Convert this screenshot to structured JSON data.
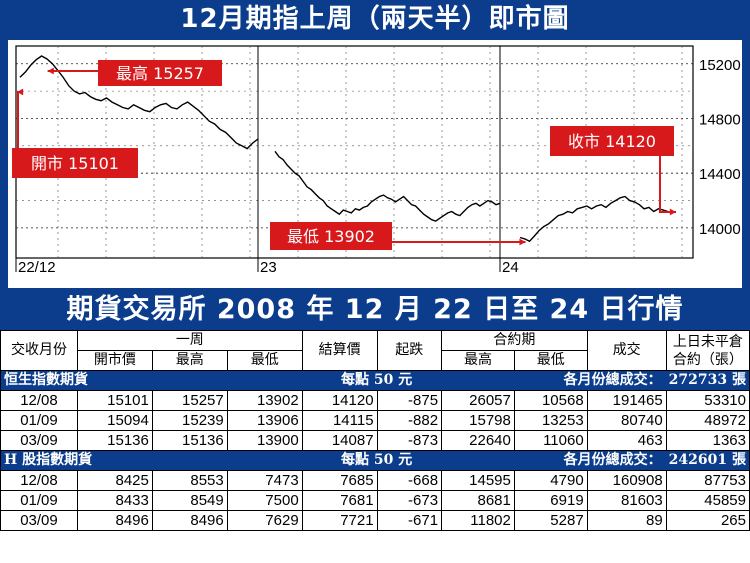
{
  "top_title": "12月期指上周（兩天半）即市圖",
  "table_title": "期貨交易所 2008 年 12 月 22 日至 24 日行情",
  "chart_data": {
    "type": "line",
    "title": "12月期指上周（兩天半）即市圖",
    "x_labels": [
      "22/12",
      "23",
      "24"
    ],
    "y_ticks": [
      15200,
      14800,
      14400,
      14000
    ],
    "ylim": [
      13780,
      15330
    ],
    "grid": true,
    "line_color": "#000000",
    "sessions": [
      {
        "day": "22/12",
        "values": [
          15101,
          15140,
          15190,
          15230,
          15257,
          15235,
          15200,
          15150,
          15100,
          15040,
          15000,
          14980,
          14990,
          14960,
          14940,
          14930,
          14950,
          14920,
          14900,
          14880,
          14870,
          14900,
          14880,
          14860,
          14850,
          14880,
          14900,
          14910,
          14880,
          14870,
          14900,
          14920,
          14890,
          14860,
          14820,
          14780,
          14760,
          14720,
          14700,
          14660,
          14620,
          14600,
          14580,
          14620,
          14650
        ]
      },
      {
        "day": "23",
        "values": [
          14560,
          14520,
          14500,
          14460,
          14430,
          14400,
          14380,
          14340,
          14300,
          14280,
          14250,
          14220,
          14200,
          14160,
          14140,
          14120,
          14100,
          14130,
          14120,
          14110,
          14140,
          14130,
          14150,
          14160,
          14190,
          14210,
          14230,
          14240,
          14220,
          14210,
          14190,
          14210,
          14230,
          14200,
          14170,
          14160,
          14130,
          14100,
          14080,
          14060,
          14050,
          14070,
          14090,
          14110,
          14120,
          14100,
          14090,
          14120,
          14150,
          14170,
          14180,
          14160,
          14180,
          14200,
          14190,
          14170,
          14180
        ]
      },
      {
        "day": "24",
        "values": [
          13930,
          13920,
          13902,
          13940,
          13980,
          14010,
          14030,
          14060,
          14090,
          14100,
          14120,
          14110,
          14140,
          14150,
          14160,
          14140,
          14160,
          14170,
          14150,
          14180,
          14200,
          14220,
          14230,
          14200,
          14190,
          14170,
          14140,
          14150,
          14120,
          14140,
          14130,
          14120
        ]
      }
    ],
    "annotations": [
      {
        "label": "最高 15257"
      },
      {
        "label": "開市 15101"
      },
      {
        "label": "收市 14120"
      },
      {
        "label": "最低 13902"
      }
    ],
    "annotation_color": "#d7191c"
  },
  "table": {
    "header1": {
      "month": "交收月份",
      "week": "一周",
      "settle": "結算價",
      "change": "起跌",
      "contract": "合約期",
      "volume": "成交",
      "oi": "上日未平倉合約（張）"
    },
    "header2": {
      "open": "開市價",
      "high": "最高",
      "low": "最低",
      "c_high": "最高",
      "c_low": "最低"
    },
    "sections": [
      {
        "name": "恒生指數期貨",
        "per_point": "每點 50 元",
        "total": "各月份總成交：　272733 張",
        "rows": [
          [
            "12/08",
            "15101",
            "15257",
            "13902",
            "14120",
            "-875",
            "26057",
            "10568",
            "191465",
            "53310"
          ],
          [
            "01/09",
            "15094",
            "15239",
            "13906",
            "14115",
            "-882",
            "15798",
            "13253",
            "80740",
            "48972"
          ],
          [
            "03/09",
            "15136",
            "15136",
            "13900",
            "14087",
            "-873",
            "22640",
            "11060",
            "463",
            "1363"
          ]
        ]
      },
      {
        "name": "H 股指數期貨",
        "per_point": "每點 50 元",
        "total": "各月份總成交：　242601 張",
        "rows": [
          [
            "12/08",
            "8425",
            "8553",
            "7473",
            "7685",
            "-668",
            "14595",
            "4790",
            "160908",
            "87753"
          ],
          [
            "01/09",
            "8433",
            "8549",
            "7500",
            "7681",
            "-673",
            "8681",
            "6919",
            "81603",
            "45859"
          ],
          [
            "03/09",
            "8496",
            "8496",
            "7629",
            "7721",
            "-671",
            "11802",
            "5287",
            "89",
            "265"
          ]
        ]
      }
    ]
  }
}
